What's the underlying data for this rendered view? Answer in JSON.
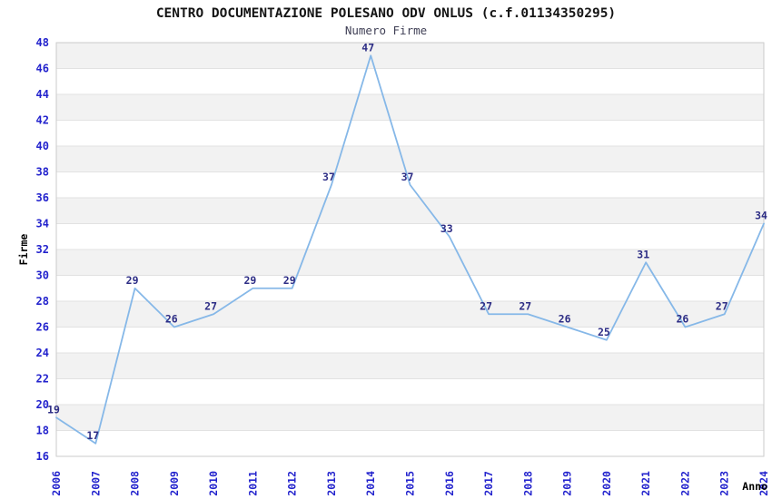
{
  "header": {
    "title": "CENTRO DOCUMENTAZIONE POLESANO ODV ONLUS (c.f.01134350295)",
    "subtitle": "Numero Firme"
  },
  "chart_data": {
    "type": "line",
    "title": "CENTRO DOCUMENTAZIONE POLESANO ODV ONLUS (c.f.01134350295)",
    "subtitle": "Numero Firme",
    "xlabel": "Anno",
    "ylabel": "Firme",
    "categories": [
      "2006",
      "2007",
      "2008",
      "2009",
      "2010",
      "2011",
      "2012",
      "2013",
      "2014",
      "2015",
      "2016",
      "2017",
      "2018",
      "2019",
      "2020",
      "2021",
      "2022",
      "2023",
      "2024"
    ],
    "series": [
      {
        "name": "Numero Firme",
        "values": [
          19,
          17,
          29,
          26,
          27,
          29,
          29,
          37,
          47,
          37,
          33,
          27,
          27,
          26,
          25,
          31,
          26,
          27,
          34
        ]
      }
    ],
    "ylim": [
      16,
      48
    ],
    "ytick_step": 2,
    "grid": "horizontal-bands-alternating",
    "legend": "none",
    "data_labels": true,
    "colors": {
      "line": "#86b8e8",
      "tick_label": "#2323cd",
      "data_label": "#2d2d85",
      "band": "#f2f2f2",
      "gridline": "#e2e2e2",
      "plot_border": "#cbcbcb",
      "title": "#141414",
      "subtitle": "#3f3f55",
      "axis_title": "#000000",
      "background": "#ffffff"
    }
  }
}
